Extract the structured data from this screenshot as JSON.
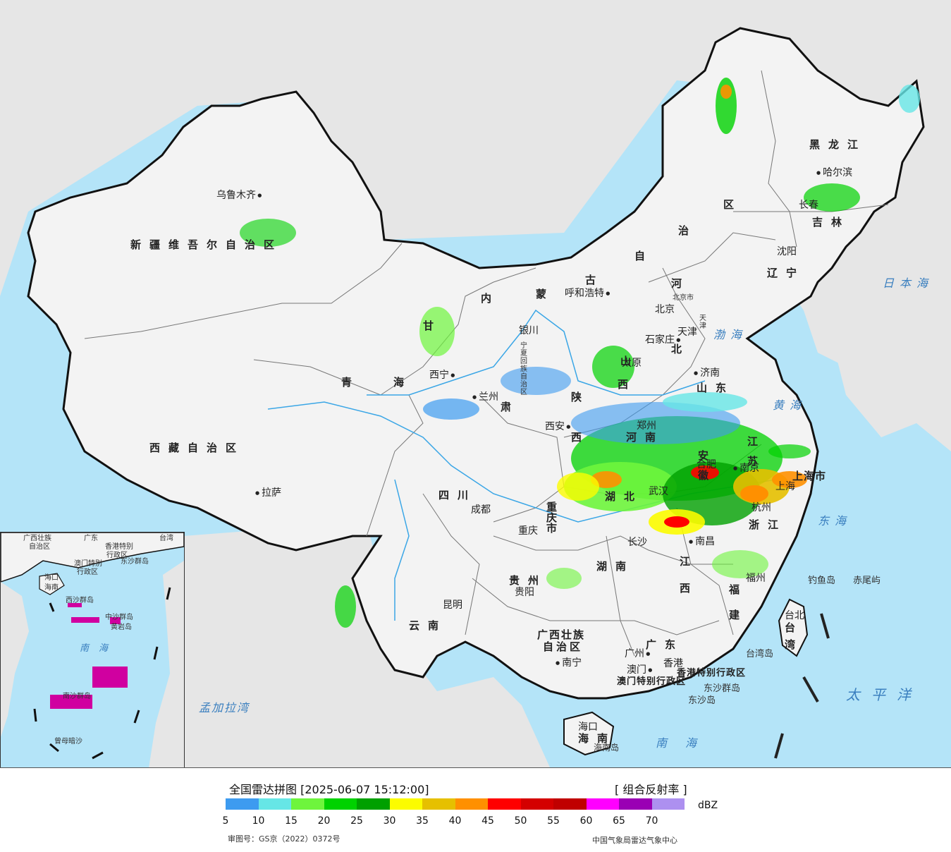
{
  "map": {
    "region_labels": [
      {
        "id": "xinjiang",
        "text": "新疆维吾尔自治区"
      },
      {
        "id": "xizang",
        "text": "西藏自治区"
      },
      {
        "id": "qinghai-a",
        "text": "青"
      },
      {
        "id": "qinghai-b",
        "text": "海"
      },
      {
        "id": "gansu-a",
        "text": "甘"
      },
      {
        "id": "gansu-b",
        "text": "肃"
      },
      {
        "id": "neimenggu-a",
        "text": "内"
      },
      {
        "id": "neimenggu-b",
        "text": "蒙"
      },
      {
        "id": "neimenggu-c",
        "text": "古"
      },
      {
        "id": "neimenggu-d",
        "text": "自"
      },
      {
        "id": "neimenggu-e",
        "text": "治"
      },
      {
        "id": "neimenggu-f",
        "text": "区"
      },
      {
        "id": "heilongjiang",
        "text": "黑龙江"
      },
      {
        "id": "jilin",
        "text": "吉林"
      },
      {
        "id": "liaoning",
        "text": "辽宁"
      },
      {
        "id": "hebei-a",
        "text": "河"
      },
      {
        "id": "hebei-b",
        "text": "北"
      },
      {
        "id": "shanxi-a",
        "text": "山"
      },
      {
        "id": "shanxi-b",
        "text": "西"
      },
      {
        "id": "shandong",
        "text": "山东"
      },
      {
        "id": "shaanxi-a",
        "text": "陕"
      },
      {
        "id": "shaanxi-b",
        "text": "西"
      },
      {
        "id": "ningxia",
        "text": "宁夏回族自治区"
      },
      {
        "id": "henan",
        "text": "河南"
      },
      {
        "id": "jiangsu",
        "text": "江苏"
      },
      {
        "id": "anhui",
        "text": "安徽"
      },
      {
        "id": "hubei",
        "text": "湖北"
      },
      {
        "id": "sichuan",
        "text": "四川"
      },
      {
        "id": "chongqing",
        "text": "重庆市"
      },
      {
        "id": "zhejiang",
        "text": "浙江"
      },
      {
        "id": "jiangxi",
        "text": "江西"
      },
      {
        "id": "hunan",
        "text": "湖南"
      },
      {
        "id": "guizhou",
        "text": "贵州"
      },
      {
        "id": "yunnan",
        "text": "云南"
      },
      {
        "id": "fujian",
        "text": "福建"
      },
      {
        "id": "guangxi-a",
        "text": "广西壮族"
      },
      {
        "id": "guangxi-b",
        "text": "自治区"
      },
      {
        "id": "guangdong",
        "text": "广东"
      },
      {
        "id": "hainan",
        "text": "海南"
      },
      {
        "id": "taiwan",
        "text": "台湾"
      },
      {
        "id": "shanghai",
        "text": "上海市"
      },
      {
        "id": "tianjin",
        "text": "天津"
      },
      {
        "id": "beijing",
        "text": "北京市"
      },
      {
        "id": "hk-sar",
        "text": "香港特别行政区"
      },
      {
        "id": "macau-sar",
        "text": "澳门特别行政区"
      }
    ],
    "cities": [
      {
        "id": "urumqi",
        "text": "乌鲁木齐"
      },
      {
        "id": "lhasa",
        "text": "拉萨"
      },
      {
        "id": "xining",
        "text": "西宁"
      },
      {
        "id": "lanzhou",
        "text": "兰州"
      },
      {
        "id": "yinchuan",
        "text": "银川"
      },
      {
        "id": "hohhot",
        "text": "呼和浩特"
      },
      {
        "id": "beijing-city",
        "text": "北京"
      },
      {
        "id": "shijiazhuang",
        "text": "石家庄"
      },
      {
        "id": "tianjin-city",
        "text": "天津"
      },
      {
        "id": "taiyuan",
        "text": "太原"
      },
      {
        "id": "jinan",
        "text": "济南"
      },
      {
        "id": "xian",
        "text": "西安"
      },
      {
        "id": "zhengzhou",
        "text": "郑州"
      },
      {
        "id": "hefei",
        "text": "合肥"
      },
      {
        "id": "nanjing",
        "text": "南京"
      },
      {
        "id": "shanghai-city",
        "text": "上海"
      },
      {
        "id": "hangzhou",
        "text": "杭州"
      },
      {
        "id": "wuhan",
        "text": "武汉"
      },
      {
        "id": "chengdu",
        "text": "成都"
      },
      {
        "id": "chongqing-city",
        "text": "重庆"
      },
      {
        "id": "changsha",
        "text": "长沙"
      },
      {
        "id": "nanchang",
        "text": "南昌"
      },
      {
        "id": "fuzhou",
        "text": "福州"
      },
      {
        "id": "guiyang",
        "text": "贵阳"
      },
      {
        "id": "kunming",
        "text": "昆明"
      },
      {
        "id": "nanning",
        "text": "南宁"
      },
      {
        "id": "guangzhou",
        "text": "广州"
      },
      {
        "id": "hongkong",
        "text": "香港"
      },
      {
        "id": "macau",
        "text": "澳门"
      },
      {
        "id": "haikou",
        "text": "海口"
      },
      {
        "id": "taipei",
        "text": "台北"
      },
      {
        "id": "shenyang",
        "text": "沈阳"
      },
      {
        "id": "changchun",
        "text": "长春"
      },
      {
        "id": "harbin",
        "text": "哈尔滨"
      }
    ],
    "seas": [
      {
        "id": "japan-sea",
        "text": "日本海"
      },
      {
        "id": "bohai",
        "text": "渤海"
      },
      {
        "id": "yellow-sea",
        "text": "黄海"
      },
      {
        "id": "east-sea",
        "text": "东海"
      },
      {
        "id": "pacific",
        "text": "太平洋"
      },
      {
        "id": "south-sea",
        "text": "南海"
      },
      {
        "id": "bengal",
        "text": "孟加拉湾"
      }
    ],
    "islands": [
      {
        "id": "diaoyu",
        "text": "钓鱼岛"
      },
      {
        "id": "chiwei",
        "text": "赤尾屿"
      },
      {
        "id": "taiwan-island",
        "text": "台湾岛"
      },
      {
        "id": "dongsha-islands",
        "text": "东沙群岛"
      },
      {
        "id": "dongsha-island",
        "text": "东沙岛"
      },
      {
        "id": "hainan-island",
        "text": "海南岛"
      }
    ],
    "inset_labels": [
      {
        "id": "in-guangxi",
        "text": "广西壮族"
      },
      {
        "id": "in-zizhiqu",
        "text": "自治区"
      },
      {
        "id": "in-guangdong",
        "text": "广东"
      },
      {
        "id": "in-taiwan",
        "text": "台湾"
      },
      {
        "id": "in-hk",
        "text": "香港特别"
      },
      {
        "id": "in-hk2",
        "text": "行政区"
      },
      {
        "id": "in-macau",
        "text": "澳门特别"
      },
      {
        "id": "in-macau2",
        "text": "行政区"
      },
      {
        "id": "in-dongsha",
        "text": "东沙群岛"
      },
      {
        "id": "in-haikou",
        "text": "海口"
      },
      {
        "id": "in-hainan",
        "text": "海南"
      },
      {
        "id": "in-xisha",
        "text": "西沙群岛"
      },
      {
        "id": "in-zhongsha",
        "text": "中沙群岛"
      },
      {
        "id": "in-huangyan",
        "text": "黄岩岛"
      },
      {
        "id": "in-south-sea",
        "text": "南海"
      },
      {
        "id": "in-nansha",
        "text": "南沙群岛"
      },
      {
        "id": "in-zengmu",
        "text": "曾母暗沙"
      }
    ]
  },
  "legend": {
    "title": "全国雷达拼图 [2025-06-07 15:12:00]",
    "product": "[ 组合反射率 ]",
    "unit": "dBZ",
    "colors": [
      "#3d9bf0",
      "#66e6e6",
      "#6ef53c",
      "#00d200",
      "#00a000",
      "#fcfc00",
      "#e6c000",
      "#ff9000",
      "#ff0000",
      "#d40000",
      "#c00000",
      "#ff00ff",
      "#9a00b4",
      "#ad90f0"
    ],
    "ticks": [
      "5",
      "10",
      "15",
      "20",
      "25",
      "30",
      "35",
      "40",
      "45",
      "50",
      "55",
      "60",
      "65",
      "70"
    ],
    "approval": "审图号：GS京（2022）0372号",
    "center": "中国气象局雷达气象中心"
  }
}
